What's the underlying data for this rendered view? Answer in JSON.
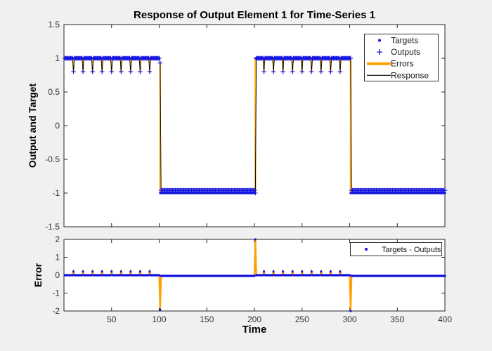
{
  "figure": {
    "background": "#F0F0F0",
    "axes_background": "#FFFFFF",
    "axis_color": "#262626",
    "tick_label_color": "#333333"
  },
  "colors": {
    "blue": "#1010E0",
    "orange": "#FFA000",
    "black": "#000000"
  },
  "chart_data": [
    {
      "type": "line",
      "title": "Response of Output Element 1 for Time-Series 1",
      "ylabel": "Output and Target",
      "xlim": [
        0,
        400
      ],
      "ylim": [
        -1.5,
        1.5
      ],
      "xticks": [
        50,
        100,
        150,
        200,
        250,
        300,
        350,
        400
      ],
      "show_xtick_labels": false,
      "yticks": [
        -1.5,
        -1,
        -0.5,
        0,
        0.5,
        1,
        1.5
      ],
      "ytick_labels": [
        "-1.5",
        "-1",
        "-0.5",
        "0",
        "0.5",
        "1",
        "1.5"
      ],
      "grid": false,
      "legend": {
        "position": "northeast",
        "entries": [
          {
            "label": "Targets",
            "marker": "dot",
            "color": "#1010E0"
          },
          {
            "label": "Outputs",
            "marker": "plus",
            "color": "#1010E0"
          },
          {
            "label": "Errors",
            "marker": "thick-line",
            "color": "#FFA000"
          },
          {
            "label": "Response",
            "marker": "thin-line",
            "color": "#000000"
          }
        ]
      },
      "series": {
        "time": {
          "start": 1,
          "end": 400,
          "step": 1
        },
        "targets": {
          "name": "Targets",
          "description": "square wave, one point per time step",
          "segments": [
            {
              "from": 1,
              "to": 100,
              "value": 1
            },
            {
              "from": 101,
              "to": 200,
              "value": -1
            },
            {
              "from": 201,
              "to": 300,
              "value": 1
            },
            {
              "from": 301,
              "to": 400,
              "value": -1
            }
          ]
        },
        "outputs": {
          "name": "Outputs",
          "rule": "equal to target except listed exceptions",
          "dip_times": [
            10,
            20,
            30,
            40,
            50,
            60,
            70,
            80,
            90,
            210,
            220,
            230,
            240,
            250,
            260,
            270,
            280,
            290
          ],
          "dip_value": 0.8,
          "transition_points": [
            {
              "t": 101,
              "value": 0.93
            },
            {
              "t": 201,
              "value": -1
            },
            {
              "t": 301,
              "value": 1
            }
          ],
          "low_segment_value": -0.96
        },
        "errors": {
          "name": "Errors",
          "style": "vertical orange segment from target to output at each time step"
        },
        "response": {
          "name": "Response",
          "style": "thin black line through output values"
        }
      }
    },
    {
      "type": "scatter",
      "ylabel": "Error",
      "xlabel": "Time",
      "xlim": [
        0,
        400
      ],
      "ylim": [
        -2,
        2
      ],
      "xticks": [
        50,
        100,
        150,
        200,
        250,
        300,
        350,
        400
      ],
      "xtick_labels": [
        "50",
        "100",
        "150",
        "200",
        "250",
        "300",
        "350",
        "400"
      ],
      "yticks": [
        -2,
        -1,
        0,
        1,
        2
      ],
      "ytick_labels": [
        "-2",
        "-1",
        "0",
        "1",
        "2"
      ],
      "grid": false,
      "legend": {
        "position": "northeast",
        "entries": [
          {
            "label": "Targets - Outputs",
            "marker": "dot",
            "color": "#1010E0"
          }
        ]
      },
      "series": {
        "errors": {
          "name": "Targets - Outputs",
          "definition": "targets minus outputs of chart 1, one blue dot per time step with orange connecting line",
          "baseline_high_segments": 0,
          "baseline_low_segments": -0.04,
          "small_spikes": {
            "times": [
              10,
              20,
              30,
              40,
              50,
              60,
              70,
              80,
              90,
              210,
              220,
              230,
              240,
              250,
              260,
              270,
              280,
              290
            ],
            "value": 0.2
          },
          "large_spikes": [
            {
              "t": 101,
              "value": -1.93
            },
            {
              "t": 201,
              "value": 2
            },
            {
              "t": 301,
              "value": -2
            }
          ]
        }
      }
    }
  ]
}
